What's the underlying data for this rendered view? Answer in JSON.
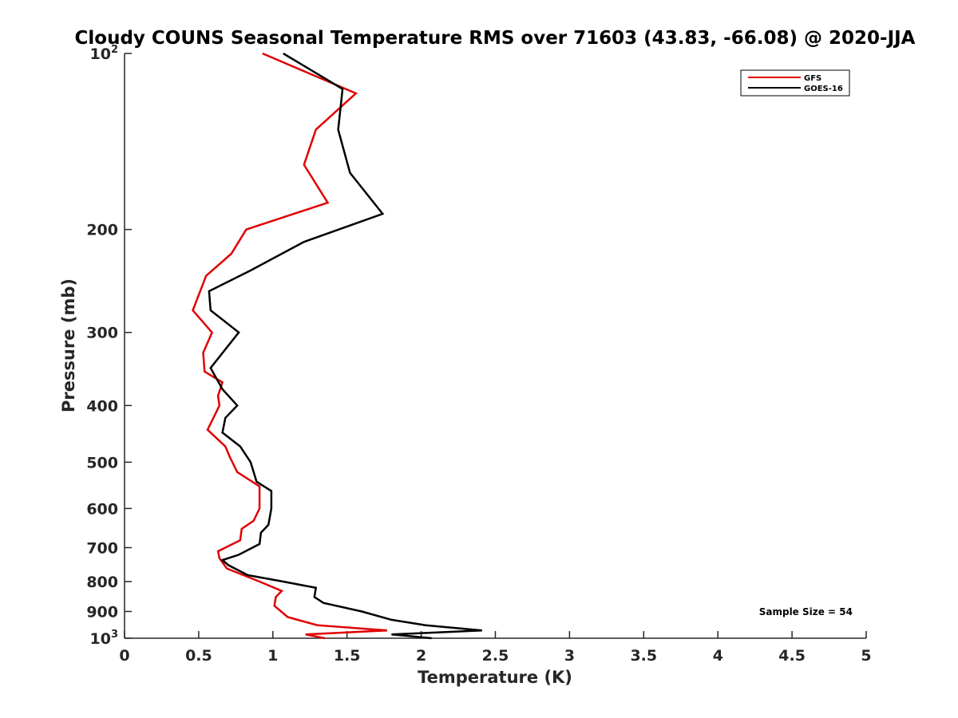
{
  "chart_data": {
    "type": "line",
    "title": "Cloudy COUNS Seasonal Temperature RMS over 71603 (43.83, -66.08) @ 2020-JJA",
    "xlabel": "Temperature (K)",
    "ylabel": "Pressure (mb)",
    "xlim": [
      0,
      5
    ],
    "ylim": [
      100,
      1000
    ],
    "y_scale": "log",
    "y_reversed": true,
    "grid": false,
    "legend_position": "top-right",
    "x_ticks": [
      {
        "value": 0,
        "label": "0"
      },
      {
        "value": 0.5,
        "label": "0.5"
      },
      {
        "value": 1,
        "label": "1"
      },
      {
        "value": 1.5,
        "label": "1.5"
      },
      {
        "value": 2,
        "label": "2"
      },
      {
        "value": 2.5,
        "label": "2.5"
      },
      {
        "value": 3,
        "label": "3"
      },
      {
        "value": 3.5,
        "label": "3.5"
      },
      {
        "value": 4,
        "label": "4"
      },
      {
        "value": 4.5,
        "label": "4.5"
      },
      {
        "value": 5,
        "label": "5"
      }
    ],
    "y_ticks": [
      {
        "value": 100,
        "base": "10",
        "exp": "2"
      },
      {
        "value": 200,
        "label": "200"
      },
      {
        "value": 300,
        "label": "300"
      },
      {
        "value": 400,
        "label": "400"
      },
      {
        "value": 500,
        "label": "500"
      },
      {
        "value": 600,
        "label": "600"
      },
      {
        "value": 700,
        "label": "700"
      },
      {
        "value": 800,
        "label": "800"
      },
      {
        "value": 900,
        "label": "900"
      },
      {
        "value": 1000,
        "base": "10",
        "exp": "3"
      }
    ],
    "series": [
      {
        "name": "GFS",
        "color": "#e00000",
        "points": [
          [
            0.93,
            100
          ],
          [
            1.56,
            117
          ],
          [
            1.29,
            135
          ],
          [
            1.21,
            155
          ],
          [
            1.37,
            180
          ],
          [
            0.82,
            200
          ],
          [
            0.72,
            220
          ],
          [
            0.55,
            240
          ],
          [
            0.46,
            275
          ],
          [
            0.59,
            300
          ],
          [
            0.53,
            325
          ],
          [
            0.54,
            350
          ],
          [
            0.66,
            365
          ],
          [
            0.63,
            385
          ],
          [
            0.64,
            400
          ],
          [
            0.56,
            440
          ],
          [
            0.68,
            470
          ],
          [
            0.71,
            490
          ],
          [
            0.76,
            520
          ],
          [
            0.91,
            550
          ],
          [
            0.91,
            600
          ],
          [
            0.87,
            630
          ],
          [
            0.79,
            650
          ],
          [
            0.78,
            680
          ],
          [
            0.63,
            710
          ],
          [
            0.64,
            730
          ],
          [
            0.69,
            760
          ],
          [
            0.91,
            800
          ],
          [
            1.06,
            830
          ],
          [
            1.02,
            850
          ],
          [
            1.01,
            880
          ],
          [
            1.1,
            920
          ],
          [
            1.3,
            950
          ],
          [
            1.77,
            970
          ],
          [
            1.22,
            985
          ],
          [
            1.35,
            1000
          ]
        ]
      },
      {
        "name": "GOES-16",
        "color": "#000000",
        "points": [
          [
            1.07,
            100
          ],
          [
            1.47,
            115
          ],
          [
            1.44,
            135
          ],
          [
            1.52,
            160
          ],
          [
            1.74,
            188
          ],
          [
            1.21,
            210
          ],
          [
            0.85,
            235
          ],
          [
            0.57,
            255
          ],
          [
            0.58,
            275
          ],
          [
            0.77,
            300
          ],
          [
            0.58,
            345
          ],
          [
            0.66,
            375
          ],
          [
            0.76,
            400
          ],
          [
            0.68,
            420
          ],
          [
            0.66,
            445
          ],
          [
            0.78,
            470
          ],
          [
            0.85,
            500
          ],
          [
            0.89,
            540
          ],
          [
            0.99,
            560
          ],
          [
            0.99,
            600
          ],
          [
            0.97,
            640
          ],
          [
            0.92,
            660
          ],
          [
            0.91,
            690
          ],
          [
            0.77,
            720
          ],
          [
            0.66,
            735
          ],
          [
            0.7,
            750
          ],
          [
            0.83,
            780
          ],
          [
            1.07,
            800
          ],
          [
            1.29,
            820
          ],
          [
            1.28,
            850
          ],
          [
            1.34,
            870
          ],
          [
            1.6,
            900
          ],
          [
            1.8,
            930
          ],
          [
            2.03,
            950
          ],
          [
            2.41,
            970
          ],
          [
            1.8,
            985
          ],
          [
            2.07,
            1000
          ]
        ]
      }
    ],
    "annotations": [
      {
        "text": "Sample Size = 54"
      }
    ]
  }
}
